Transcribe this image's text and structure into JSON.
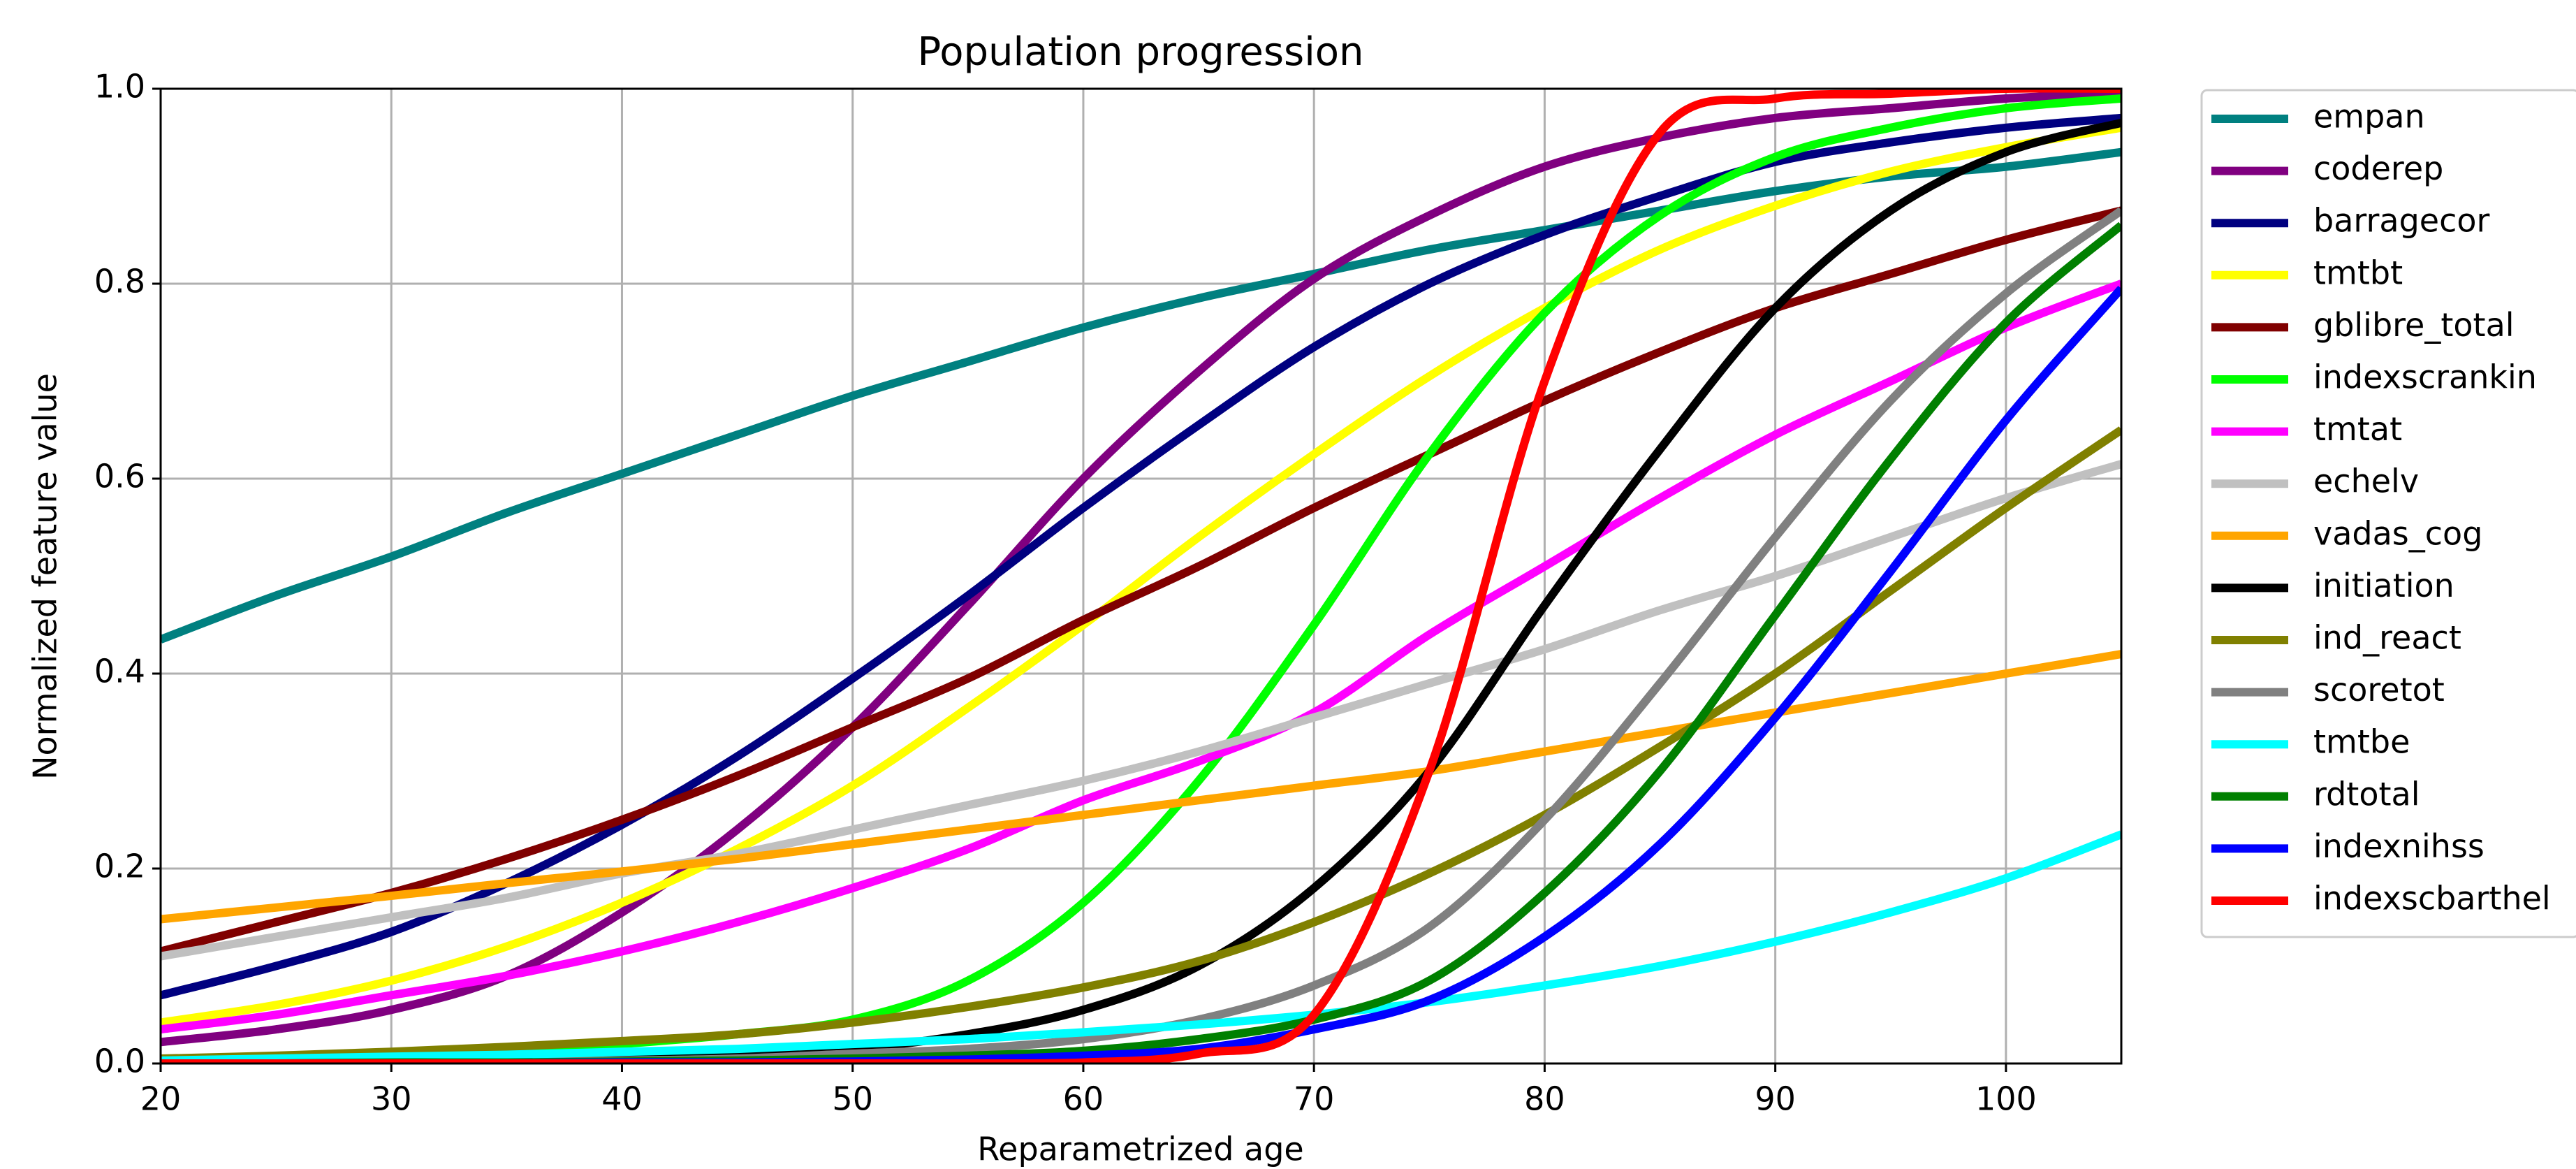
{
  "chart_data": {
    "type": "line",
    "title": "Population progression",
    "x_label": "Reparametrized age",
    "y_label": "Normalized feature value",
    "x": [
      20,
      25,
      30,
      35,
      40,
      45,
      50,
      55,
      60,
      65,
      70,
      75,
      80,
      85,
      90,
      95,
      100,
      105
    ],
    "xlim": [
      20,
      105
    ],
    "ylim": [
      0,
      1
    ],
    "xticks": [
      20,
      30,
      40,
      50,
      60,
      70,
      80,
      90,
      100
    ],
    "yticks": [
      {
        "value": 0,
        "label": "0.0"
      },
      {
        "value": 0.2,
        "label": "0.2"
      },
      {
        "value": 0.4,
        "label": "0.4"
      },
      {
        "value": 0.6,
        "label": "0.6"
      },
      {
        "value": 0.8,
        "label": "0.8"
      },
      {
        "value": 1,
        "label": "1.0"
      }
    ],
    "grid": true,
    "legend": "outside right",
    "series": [
      {
        "name": "empan",
        "color": "#008080",
        "values": [
          0.435,
          0.48,
          0.52,
          0.565,
          0.605,
          0.645,
          0.685,
          0.72,
          0.755,
          0.785,
          0.81,
          0.835,
          0.855,
          0.875,
          0.895,
          0.91,
          0.92,
          0.935
        ]
      },
      {
        "name": "coderep",
        "color": "#800080",
        "values": [
          0.022,
          0.035,
          0.055,
          0.09,
          0.155,
          0.24,
          0.345,
          0.47,
          0.6,
          0.71,
          0.805,
          0.87,
          0.92,
          0.95,
          0.97,
          0.98,
          0.99,
          0.995
        ]
      },
      {
        "name": "barragecor",
        "color": "#000080",
        "values": [
          0.07,
          0.1,
          0.135,
          0.185,
          0.245,
          0.315,
          0.395,
          0.48,
          0.57,
          0.655,
          0.735,
          0.8,
          0.85,
          0.89,
          0.925,
          0.945,
          0.96,
          0.97
        ]
      },
      {
        "name": "tmtbt",
        "color": "#ffff00",
        "values": [
          0.042,
          0.06,
          0.085,
          0.12,
          0.165,
          0.22,
          0.285,
          0.365,
          0.45,
          0.54,
          0.625,
          0.705,
          0.775,
          0.835,
          0.88,
          0.915,
          0.94,
          0.96
        ]
      },
      {
        "name": "gblibre_total",
        "color": "#800000",
        "values": [
          0.115,
          0.145,
          0.175,
          0.21,
          0.25,
          0.295,
          0.345,
          0.395,
          0.455,
          0.51,
          0.57,
          0.625,
          0.68,
          0.73,
          0.775,
          0.81,
          0.845,
          0.875
        ]
      },
      {
        "name": "indexscrankin",
        "color": "#00ff00",
        "values": [
          0.001,
          0.003,
          0.005,
          0.01,
          0.02,
          0.03,
          0.045,
          0.085,
          0.165,
          0.29,
          0.45,
          0.625,
          0.77,
          0.87,
          0.93,
          0.96,
          0.98,
          0.99
        ]
      },
      {
        "name": "tmtat",
        "color": "#ff00ff",
        "values": [
          0.035,
          0.05,
          0.07,
          0.09,
          0.115,
          0.145,
          0.18,
          0.22,
          0.27,
          0.31,
          0.36,
          0.44,
          0.51,
          0.58,
          0.645,
          0.7,
          0.755,
          0.8
        ]
      },
      {
        "name": "echelv",
        "color": "#c0c0c0",
        "values": [
          0.11,
          0.13,
          0.15,
          0.17,
          0.195,
          0.215,
          0.24,
          0.265,
          0.29,
          0.32,
          0.355,
          0.39,
          0.425,
          0.465,
          0.5,
          0.54,
          0.58,
          0.615
        ]
      },
      {
        "name": "vadas_cog",
        "color": "#ffa500",
        "values": [
          0.148,
          0.16,
          0.172,
          0.185,
          0.197,
          0.21,
          0.225,
          0.24,
          0.255,
          0.27,
          0.285,
          0.3,
          0.32,
          0.34,
          0.36,
          0.38,
          0.4,
          0.42
        ]
      },
      {
        "name": "initiation",
        "color": "#000000",
        "values": [
          0,
          0.001,
          0.002,
          0.003,
          0.005,
          0.01,
          0.015,
          0.03,
          0.055,
          0.1,
          0.18,
          0.3,
          0.47,
          0.63,
          0.775,
          0.875,
          0.935,
          0.965
        ]
      },
      {
        "name": "ind_react",
        "color": "#808000",
        "values": [
          0.005,
          0.008,
          0.012,
          0.017,
          0.023,
          0.03,
          0.042,
          0.058,
          0.078,
          0.105,
          0.145,
          0.195,
          0.255,
          0.325,
          0.4,
          0.485,
          0.57,
          0.65
        ]
      },
      {
        "name": "scoretot",
        "color": "#808080",
        "values": [
          0,
          0,
          0.001,
          0.002,
          0.003,
          0.005,
          0.01,
          0.015,
          0.025,
          0.045,
          0.08,
          0.14,
          0.25,
          0.39,
          0.54,
          0.68,
          0.79,
          0.875
        ]
      },
      {
        "name": "tmtbe",
        "color": "#00ffff",
        "values": [
          0.003,
          0.005,
          0.007,
          0.009,
          0.012,
          0.015,
          0.02,
          0.025,
          0.032,
          0.04,
          0.05,
          0.063,
          0.08,
          0.1,
          0.125,
          0.155,
          0.19,
          0.235
        ]
      },
      {
        "name": "rdtotal",
        "color": "#008000",
        "values": [
          0,
          0,
          0.001,
          0.001,
          0.002,
          0.003,
          0.005,
          0.008,
          0.013,
          0.025,
          0.045,
          0.085,
          0.175,
          0.3,
          0.46,
          0.62,
          0.76,
          0.86
        ]
      },
      {
        "name": "indexnihss",
        "color": "#0000ff",
        "values": [
          0,
          0,
          0,
          0,
          0.001,
          0.001,
          0.002,
          0.004,
          0.008,
          0.015,
          0.035,
          0.065,
          0.13,
          0.225,
          0.355,
          0.505,
          0.66,
          0.795
        ]
      },
      {
        "name": "indexscbarthel",
        "color": "#ff0000",
        "values": [
          0,
          0,
          0,
          0,
          0,
          0,
          0,
          0,
          0.001,
          0.01,
          0.05,
          0.3,
          0.7,
          0.955,
          0.99,
          0.995,
          1,
          1
        ]
      }
    ]
  }
}
